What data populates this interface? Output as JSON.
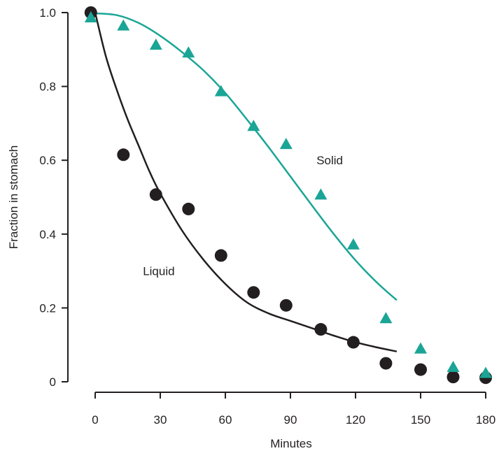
{
  "chart_data": {
    "type": "scatter",
    "xlabel": "Minutes",
    "ylabel": "Fraction in stomach",
    "xlim": [
      0,
      180
    ],
    "ylim": [
      0,
      1.0
    ],
    "x_ticks": [
      0,
      30,
      60,
      90,
      120,
      150,
      180
    ],
    "x_tick_labels": [
      "0",
      "30",
      "60",
      "90",
      "120",
      "150",
      "180"
    ],
    "y_ticks": [
      0,
      0.2,
      0.4,
      0.6,
      0.8,
      1.0
    ],
    "y_tick_labels": [
      "0",
      "0.2",
      "0.4",
      "0.6",
      "0.8",
      "1.0"
    ],
    "grid": false,
    "legend": "none",
    "series": [
      {
        "name": "Liquid",
        "marker": "circle",
        "color": "#231f20",
        "points": [
          {
            "x": -2,
            "y": 1.0
          },
          {
            "x": 13,
            "y": 0.615
          },
          {
            "x": 28,
            "y": 0.507
          },
          {
            "x": 43,
            "y": 0.468
          },
          {
            "x": 58,
            "y": 0.342
          },
          {
            "x": 73,
            "y": 0.242
          },
          {
            "x": 88,
            "y": 0.207
          },
          {
            "x": 104,
            "y": 0.142
          },
          {
            "x": 119,
            "y": 0.107
          },
          {
            "x": 134,
            "y": 0.05
          },
          {
            "x": 150,
            "y": 0.033
          },
          {
            "x": 165,
            "y": 0.013
          },
          {
            "x": 180,
            "y": 0.011
          }
        ],
        "fit_curve": [
          {
            "x": 0,
            "y": 1.0
          },
          {
            "x": 5,
            "y": 0.88
          },
          {
            "x": 10,
            "y": 0.79
          },
          {
            "x": 15,
            "y": 0.71
          },
          {
            "x": 20,
            "y": 0.64
          },
          {
            "x": 25,
            "y": 0.57
          },
          {
            "x": 30,
            "y": 0.51
          },
          {
            "x": 40,
            "y": 0.41
          },
          {
            "x": 50,
            "y": 0.33
          },
          {
            "x": 60,
            "y": 0.265
          },
          {
            "x": 70,
            "y": 0.215
          },
          {
            "x": 80,
            "y": 0.185
          },
          {
            "x": 90,
            "y": 0.165
          },
          {
            "x": 100,
            "y": 0.145
          },
          {
            "x": 110,
            "y": 0.125
          },
          {
            "x": 120,
            "y": 0.107
          },
          {
            "x": 130,
            "y": 0.093
          },
          {
            "x": 139,
            "y": 0.082
          }
        ]
      },
      {
        "name": "Solid",
        "marker": "triangle",
        "color": "#1aa596",
        "points": [
          {
            "x": -2,
            "y": 0.985
          },
          {
            "x": 13,
            "y": 0.963
          },
          {
            "x": 28,
            "y": 0.911
          },
          {
            "x": 43,
            "y": 0.89
          },
          {
            "x": 58,
            "y": 0.785
          },
          {
            "x": 73,
            "y": 0.691
          },
          {
            "x": 88,
            "y": 0.642
          },
          {
            "x": 104,
            "y": 0.505
          },
          {
            "x": 119,
            "y": 0.37
          },
          {
            "x": 134,
            "y": 0.17
          },
          {
            "x": 150,
            "y": 0.088
          },
          {
            "x": 165,
            "y": 0.038
          },
          {
            "x": 180,
            "y": 0.022
          }
        ],
        "fit_curve": [
          {
            "x": 0,
            "y": 0.998
          },
          {
            "x": 10,
            "y": 0.993
          },
          {
            "x": 20,
            "y": 0.972
          },
          {
            "x": 30,
            "y": 0.937
          },
          {
            "x": 40,
            "y": 0.893
          },
          {
            "x": 50,
            "y": 0.843
          },
          {
            "x": 60,
            "y": 0.782
          },
          {
            "x": 70,
            "y": 0.71
          },
          {
            "x": 80,
            "y": 0.635
          },
          {
            "x": 90,
            "y": 0.556
          },
          {
            "x": 100,
            "y": 0.477
          },
          {
            "x": 110,
            "y": 0.4
          },
          {
            "x": 120,
            "y": 0.329
          },
          {
            "x": 130,
            "y": 0.268
          },
          {
            "x": 139,
            "y": 0.221
          }
        ]
      }
    ],
    "annotations": [
      {
        "text": "Solid",
        "x": 102,
        "y": 0.6
      },
      {
        "text": "Liquid",
        "x": 22,
        "y": 0.3
      }
    ]
  }
}
